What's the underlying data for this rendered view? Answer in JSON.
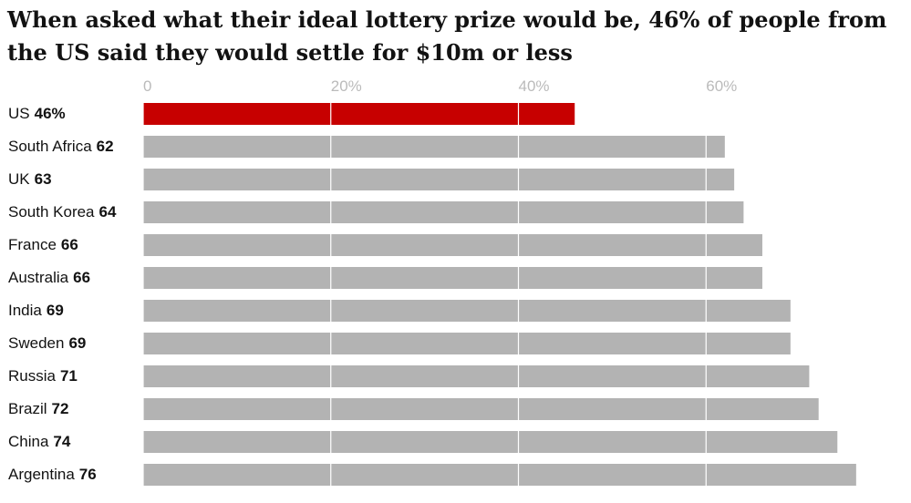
{
  "chart_data": {
    "type": "barh",
    "title": "When asked what their ideal lottery prize would be, 46% of people from the US said they would settle for $10m or less",
    "categories": [
      "US",
      "South Africa",
      "UK",
      "South Korea",
      "France",
      "Australia",
      "India",
      "Sweden",
      "Russia",
      "Brazil",
      "China",
      "Argentina"
    ],
    "values": [
      46,
      62,
      63,
      64,
      66,
      66,
      69,
      69,
      71,
      72,
      74,
      76
    ],
    "value_labels": [
      "46%",
      "62",
      "63",
      "64",
      "66",
      "66",
      "69",
      "69",
      "71",
      "72",
      "74",
      "76"
    ],
    "colors": [
      "#c70000",
      "#b3b3b3",
      "#b3b3b3",
      "#b3b3b3",
      "#b3b3b3",
      "#b3b3b3",
      "#b3b3b3",
      "#b3b3b3",
      "#b3b3b3",
      "#b3b3b3",
      "#b3b3b3",
      "#b3b3b3"
    ],
    "xlim": [
      0,
      80
    ],
    "xticks": [
      0,
      {
        "value": 20,
        "label": "20%"
      },
      {
        "value": 40,
        "label": "40%"
      },
      {
        "value": 60,
        "label": "60%"
      }
    ],
    "grid": true
  }
}
